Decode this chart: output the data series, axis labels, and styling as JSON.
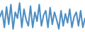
{
  "values": [
    22,
    30,
    8,
    35,
    12,
    38,
    6,
    28,
    20,
    40,
    8,
    32,
    18,
    10,
    36,
    8,
    28,
    16,
    38,
    10,
    24,
    30,
    8,
    34,
    12,
    28,
    18,
    6,
    30,
    10,
    26,
    14,
    32,
    8,
    22,
    28,
    10,
    30,
    8,
    20
  ],
  "line_color": "#4d8ec4",
  "linewidth": 1.5,
  "background_color": "#ffffff",
  "ylim": [
    2,
    44
  ]
}
